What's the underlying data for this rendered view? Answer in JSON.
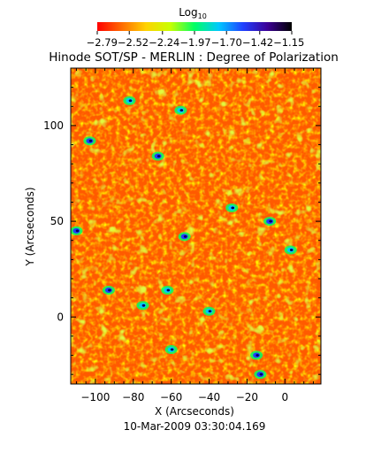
{
  "chart_data": {
    "type": "heatmap",
    "title": "Hinode SOT/SP - MERLIN : Degree of Polarization",
    "xlabel": "X (Arcseconds)",
    "ylabel": "Y (Arcseconds)",
    "xlim": [
      -113,
      19
    ],
    "ylim": [
      -35,
      130
    ],
    "x_ticks": [
      -100,
      -80,
      -60,
      -40,
      -20,
      0
    ],
    "x_tick_labels": [
      "−100",
      "−80",
      "−60",
      "−40",
      "−20",
      "0"
    ],
    "y_ticks": [
      0,
      50,
      100
    ],
    "y_tick_labels": [
      "0",
      "50",
      "100"
    ],
    "colorbar": {
      "label_base": "Log",
      "label_sub": "10",
      "ticks": [
        -2.79,
        -2.52,
        -2.24,
        -1.97,
        -1.7,
        -1.42,
        -1.15
      ],
      "tick_text": "−2.79−2.52−2.24−1.97−1.70−1.42−1.15",
      "range": [
        -2.79,
        -1.15
      ],
      "colors": [
        "#ff0000",
        "#ff6a00",
        "#ffd200",
        "#c8ff00",
        "#00ff64",
        "#00c8ff",
        "#2040ff",
        "#3c0096",
        "#000000"
      ]
    },
    "background_color": "#ff5a00",
    "features": [
      {
        "x": -67,
        "y": 84,
        "value": -1.5
      },
      {
        "x": -103,
        "y": 92,
        "value": -1.5
      },
      {
        "x": -53,
        "y": 42,
        "value": -1.6
      },
      {
        "x": -110,
        "y": 45,
        "value": -1.6
      },
      {
        "x": -8,
        "y": 50,
        "value": -1.6
      },
      {
        "x": -93,
        "y": 14,
        "value": -1.6
      },
      {
        "x": 3,
        "y": 35,
        "value": -1.7
      },
      {
        "x": -55,
        "y": 108,
        "value": -1.7
      },
      {
        "x": -82,
        "y": 113,
        "value": -1.7
      },
      {
        "x": -40,
        "y": 3,
        "value": -1.8
      },
      {
        "x": -75,
        "y": 6,
        "value": -1.8
      },
      {
        "x": -15,
        "y": -20,
        "value": -1.6
      },
      {
        "x": -13,
        "y": -30,
        "value": -1.5
      },
      {
        "x": -62,
        "y": 14,
        "value": -1.8
      },
      {
        "x": -60,
        "y": -17,
        "value": -1.8
      },
      {
        "x": -28,
        "y": 57,
        "value": -1.8
      }
    ],
    "footer": "10-Mar-2009 03:30:04.169"
  }
}
